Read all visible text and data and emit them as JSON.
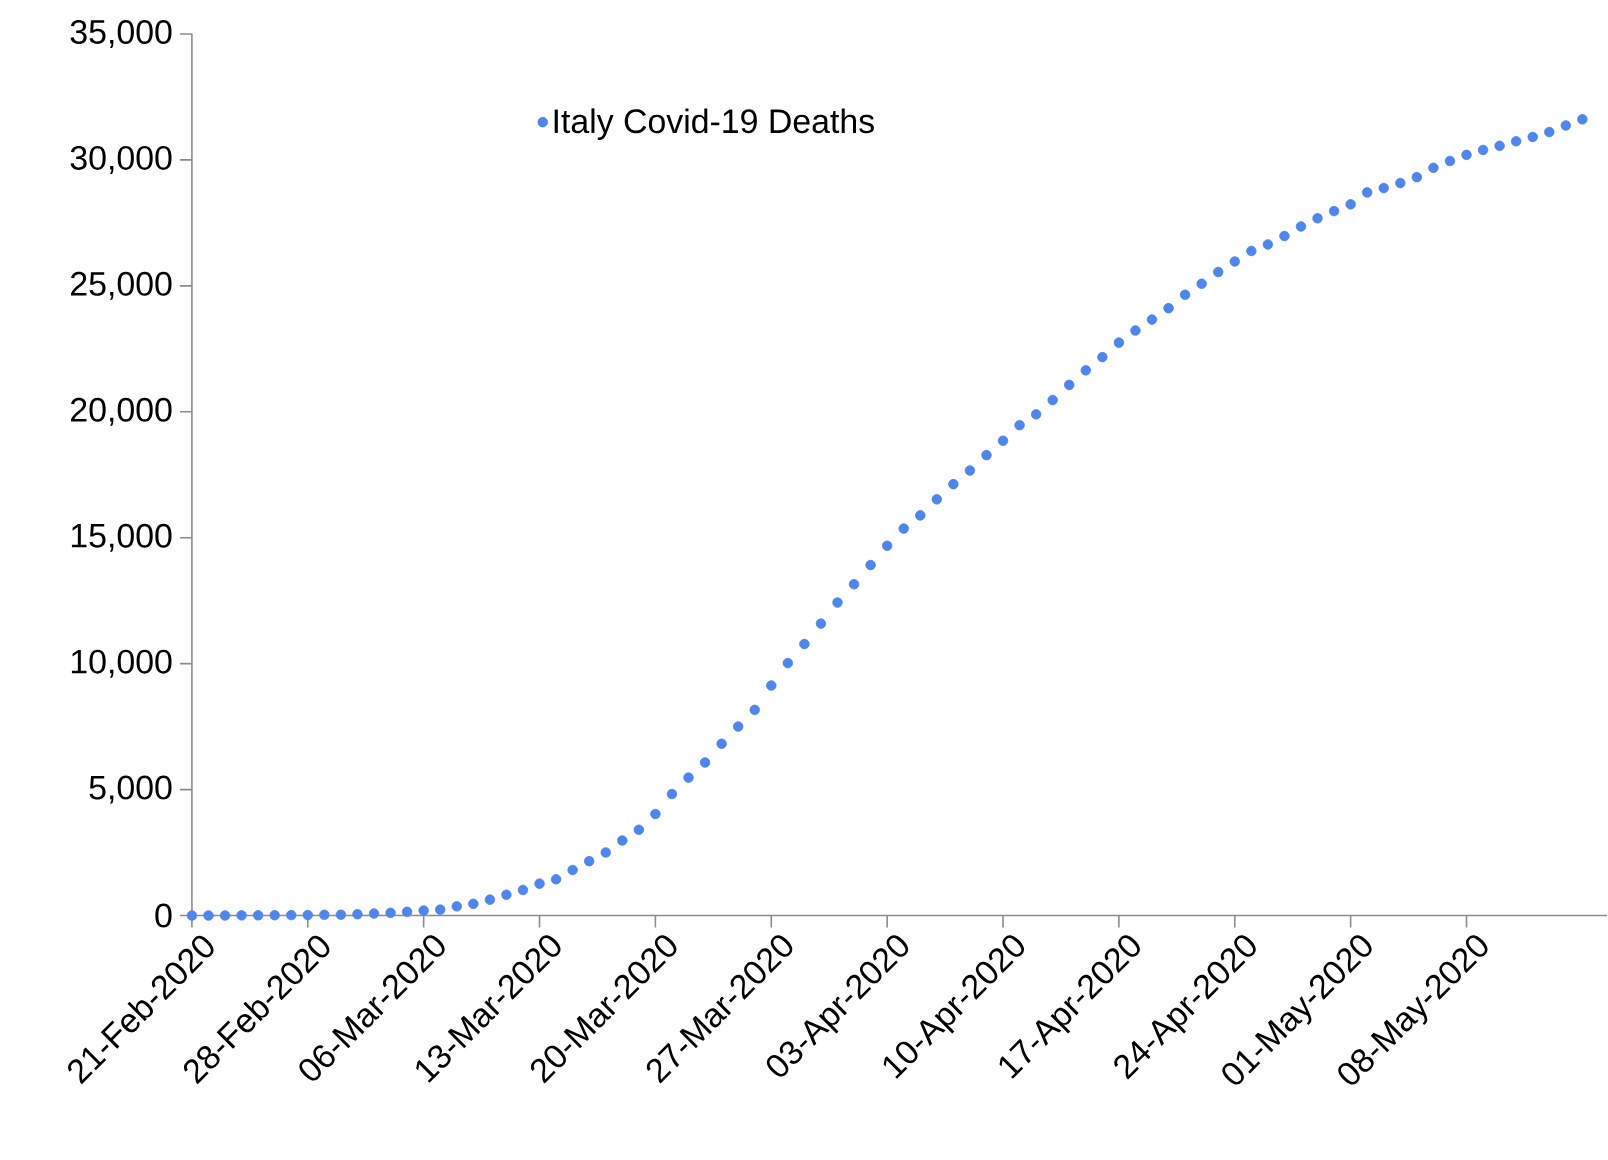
{
  "chart_data": {
    "type": "scatter",
    "x": [
      "2020-02-21",
      "2020-02-22",
      "2020-02-23",
      "2020-02-24",
      "2020-02-25",
      "2020-02-26",
      "2020-02-27",
      "2020-02-28",
      "2020-02-29",
      "2020-03-01",
      "2020-03-02",
      "2020-03-03",
      "2020-03-04",
      "2020-03-05",
      "2020-03-06",
      "2020-03-07",
      "2020-03-08",
      "2020-03-09",
      "2020-03-10",
      "2020-03-11",
      "2020-03-12",
      "2020-03-13",
      "2020-03-14",
      "2020-03-15",
      "2020-03-16",
      "2020-03-17",
      "2020-03-18",
      "2020-03-19",
      "2020-03-20",
      "2020-03-21",
      "2020-03-22",
      "2020-03-23",
      "2020-03-24",
      "2020-03-25",
      "2020-03-26",
      "2020-03-27",
      "2020-03-28",
      "2020-03-29",
      "2020-03-30",
      "2020-03-31",
      "2020-04-01",
      "2020-04-02",
      "2020-04-03",
      "2020-04-04",
      "2020-04-05",
      "2020-04-06",
      "2020-04-07",
      "2020-04-08",
      "2020-04-09",
      "2020-04-10",
      "2020-04-11",
      "2020-04-12",
      "2020-04-13",
      "2020-04-14",
      "2020-04-15",
      "2020-04-16",
      "2020-04-17",
      "2020-04-18",
      "2020-04-19",
      "2020-04-20",
      "2020-04-21",
      "2020-04-22",
      "2020-04-23",
      "2020-04-24",
      "2020-04-25",
      "2020-04-26",
      "2020-04-27",
      "2020-04-28",
      "2020-04-29",
      "2020-04-30",
      "2020-05-01",
      "2020-05-02",
      "2020-05-03",
      "2020-05-04",
      "2020-05-05",
      "2020-05-06",
      "2020-05-07",
      "2020-05-08",
      "2020-05-09",
      "2020-05-10",
      "2020-05-11",
      "2020-05-12",
      "2020-05-13",
      "2020-05-14",
      "2020-05-15"
    ],
    "series": [
      {
        "name": "Italy Covid-19 Deaths",
        "color": "#4f86ec",
        "values": [
          1,
          2,
          3,
          7,
          10,
          12,
          17,
          21,
          29,
          34,
          52,
          79,
          107,
          148,
          197,
          233,
          366,
          463,
          631,
          827,
          1016,
          1266,
          1441,
          1809,
          2158,
          2503,
          2978,
          3405,
          4032,
          4825,
          5476,
          6077,
          6820,
          7503,
          8165,
          9134,
          10023,
          10779,
          11591,
          12428,
          13155,
          13915,
          14681,
          15362,
          15887,
          16523,
          17127,
          17669,
          18279,
          18849,
          19468,
          19899,
          20465,
          21067,
          21645,
          22170,
          22745,
          23227,
          23660,
          24114,
          24648,
          25085,
          25549,
          25969,
          26384,
          26644,
          26977,
          27359,
          27682,
          27967,
          28236,
          28710,
          28884,
          29079,
          29315,
          29684,
          29958,
          30201,
          30395,
          30560,
          30739,
          30911,
          31106,
          31368,
          31610
        ]
      }
    ],
    "xlim": [
      "2020-02-21",
      "2020-05-16T12:00"
    ],
    "xticks": [
      {
        "value": "2020-02-21",
        "label": "21-Feb-2020"
      },
      {
        "value": "2020-02-28",
        "label": "28-Feb-2020"
      },
      {
        "value": "2020-03-06",
        "label": "06-Mar-2020"
      },
      {
        "value": "2020-03-13",
        "label": "13-Mar-2020"
      },
      {
        "value": "2020-03-20",
        "label": "20-Mar-2020"
      },
      {
        "value": "2020-03-27",
        "label": "27-Mar-2020"
      },
      {
        "value": "2020-04-03",
        "label": "03-Apr-2020"
      },
      {
        "value": "2020-04-10",
        "label": "10-Apr-2020"
      },
      {
        "value": "2020-04-17",
        "label": "17-Apr-2020"
      },
      {
        "value": "2020-04-24",
        "label": "24-Apr-2020"
      },
      {
        "value": "2020-05-01",
        "label": "01-May-2020"
      },
      {
        "value": "2020-05-08",
        "label": "08-May-2020"
      }
    ],
    "ylim": [
      0,
      35000
    ],
    "yticks": [
      0,
      {
        "value": 5000,
        "label": "5,000"
      },
      {
        "value": 10000,
        "label": "10,000"
      },
      {
        "value": 15000,
        "label": "15,000"
      },
      {
        "value": 20000,
        "label": "20,000"
      },
      {
        "value": 25000,
        "label": "25,000"
      },
      {
        "value": 30000,
        "label": "30,000"
      },
      {
        "value": 35000,
        "label": "35,000"
      }
    ],
    "grid": false,
    "legend": "top left",
    "marker": "circle"
  }
}
